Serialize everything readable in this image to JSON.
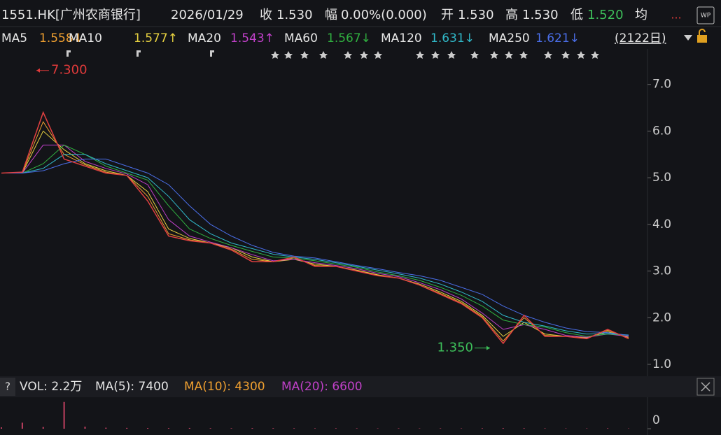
{
  "header": {
    "items": [
      {
        "text": "1551.HK[广州农商银行]",
        "color": "#e6e6e6"
      },
      {
        "text": "2026/01/29",
        "color": "#e6e6e6"
      },
      {
        "text": "收",
        "color": "#e6e6e6"
      },
      {
        "text": "1.530",
        "color": "#e6e6e6"
      },
      {
        "text": "幅",
        "color": "#e6e6e6"
      },
      {
        "text": "0.00%(0.000)",
        "color": "#e6e6e6"
      },
      {
        "text": "开",
        "color": "#e6e6e6"
      },
      {
        "text": "1.530",
        "color": "#e6e6e6"
      },
      {
        "text": "高",
        "color": "#e6e6e6"
      },
      {
        "text": "1.530",
        "color": "#e6e6e6"
      },
      {
        "text": "低",
        "color": "#e6e6e6"
      },
      {
        "text": "1.520",
        "color": "#3dbf5a"
      },
      {
        "text": "均",
        "color": "#e6e6e6"
      }
    ],
    "more": "...",
    "badge": "WP",
    "period": "(2122日)"
  },
  "chart_data": [
    {
      "type": "line",
      "ylim": [
        0.79,
        7.76
      ],
      "yticks": [
        {
          "value": 1,
          "label": "1.0"
        },
        {
          "value": 2,
          "label": "2.0"
        },
        {
          "value": 3,
          "label": "3.0"
        },
        {
          "value": 4,
          "label": "4.0"
        },
        {
          "value": 5,
          "label": "5.0"
        },
        {
          "value": 6,
          "label": "6.0"
        },
        {
          "value": 7,
          "label": "7.0"
        }
      ],
      "annotations": [
        {
          "text": "7.300",
          "value": 7.3,
          "color": "#e03a3a"
        },
        {
          "text": "1.350",
          "value": 1.35,
          "color": "#3dbf5a"
        }
      ],
      "price": {
        "color": "#e04040",
        "values": [
          5.1,
          5.12,
          6.4,
          5.4,
          5.25,
          5.1,
          5.05,
          4.5,
          3.75,
          3.65,
          3.6,
          3.45,
          3.2,
          3.2,
          3.3,
          3.1,
          3.1,
          3.0,
          2.9,
          2.85,
          2.7,
          2.5,
          2.3,
          2.0,
          1.45,
          2.05,
          1.6,
          1.6,
          1.55,
          1.75,
          1.55
        ]
      },
      "series": [
        {
          "name": "MA5",
          "legend_value": "1.558↓",
          "color": "#f0a030",
          "values": [
            5.1,
            5.11,
            6.2,
            5.5,
            5.28,
            5.12,
            5.05,
            4.6,
            3.8,
            3.67,
            3.6,
            3.47,
            3.25,
            3.2,
            3.28,
            3.12,
            3.1,
            3.01,
            2.91,
            2.85,
            2.7,
            2.52,
            2.32,
            2.02,
            1.5,
            2.0,
            1.62,
            1.6,
            1.56,
            1.73,
            1.56
          ]
        },
        {
          "name": "MA10",
          "legend_value": "1.577↑",
          "color": "#e6d040",
          "values": [
            5.1,
            5.1,
            6.0,
            5.6,
            5.3,
            5.15,
            5.05,
            4.7,
            3.9,
            3.7,
            3.6,
            3.5,
            3.3,
            3.2,
            3.25,
            3.15,
            3.1,
            3.02,
            2.92,
            2.85,
            2.72,
            2.55,
            2.35,
            2.05,
            1.6,
            1.9,
            1.65,
            1.6,
            1.57,
            1.7,
            1.58
          ]
        },
        {
          "name": "MA20",
          "legend_value": "1.543↑",
          "color": "#c040c8",
          "values": [
            5.1,
            5.1,
            5.7,
            5.7,
            5.35,
            5.2,
            5.08,
            4.85,
            4.1,
            3.75,
            3.62,
            3.5,
            3.35,
            3.22,
            3.25,
            3.18,
            3.12,
            3.05,
            2.95,
            2.88,
            2.75,
            2.6,
            2.4,
            2.1,
            1.75,
            1.85,
            1.75,
            1.62,
            1.58,
            1.65,
            1.6
          ]
        },
        {
          "name": "MA60",
          "legend_value": "1.567↓",
          "color": "#30b040",
          "values": [
            5.1,
            5.1,
            5.3,
            5.7,
            5.5,
            5.25,
            5.1,
            4.95,
            4.4,
            3.9,
            3.7,
            3.55,
            3.42,
            3.3,
            3.28,
            3.22,
            3.15,
            3.08,
            2.98,
            2.9,
            2.8,
            2.65,
            2.48,
            2.25,
            1.95,
            1.85,
            1.8,
            1.68,
            1.6,
            1.65,
            1.62
          ]
        },
        {
          "name": "MA120",
          "legend_value": "1.631↓",
          "color": "#30b8c8",
          "values": [
            5.1,
            5.1,
            5.2,
            5.5,
            5.5,
            5.3,
            5.15,
            5.0,
            4.6,
            4.1,
            3.8,
            3.6,
            3.48,
            3.36,
            3.3,
            3.25,
            3.18,
            3.1,
            3.02,
            2.94,
            2.85,
            2.72,
            2.55,
            2.35,
            2.05,
            1.9,
            1.82,
            1.72,
            1.65,
            1.66,
            1.63
          ]
        },
        {
          "name": "MA250",
          "legend_value": "1.621↓",
          "color": "#4a6ee8",
          "values": [
            5.1,
            5.1,
            5.15,
            5.3,
            5.4,
            5.4,
            5.25,
            5.1,
            4.85,
            4.4,
            4.0,
            3.75,
            3.55,
            3.4,
            3.32,
            3.28,
            3.2,
            3.12,
            3.05,
            2.97,
            2.9,
            2.8,
            2.65,
            2.5,
            2.25,
            2.05,
            1.9,
            1.78,
            1.7,
            1.68,
            1.62
          ]
        }
      ]
    },
    {
      "type": "bar",
      "help": "?",
      "title": "VOL: 2.2万",
      "legend": [
        {
          "text": "MA(5): 7400",
          "color": "#e6e6e6"
        },
        {
          "text": "MA(10): 4300",
          "color": "#f0a030"
        },
        {
          "text": "MA(20): 6600",
          "color": "#c040c8"
        }
      ],
      "ylim": [
        0,
        45000
      ],
      "yticks": [
        0
      ],
      "color": "#c04060",
      "values": [
        2000,
        9000,
        2500,
        40000,
        3000,
        1500,
        1200,
        1000,
        900,
        1100,
        800,
        700,
        900,
        800,
        700,
        600,
        700,
        600,
        500,
        600,
        500,
        600,
        500,
        700,
        900,
        800,
        600,
        500,
        500,
        700,
        400
      ]
    }
  ]
}
